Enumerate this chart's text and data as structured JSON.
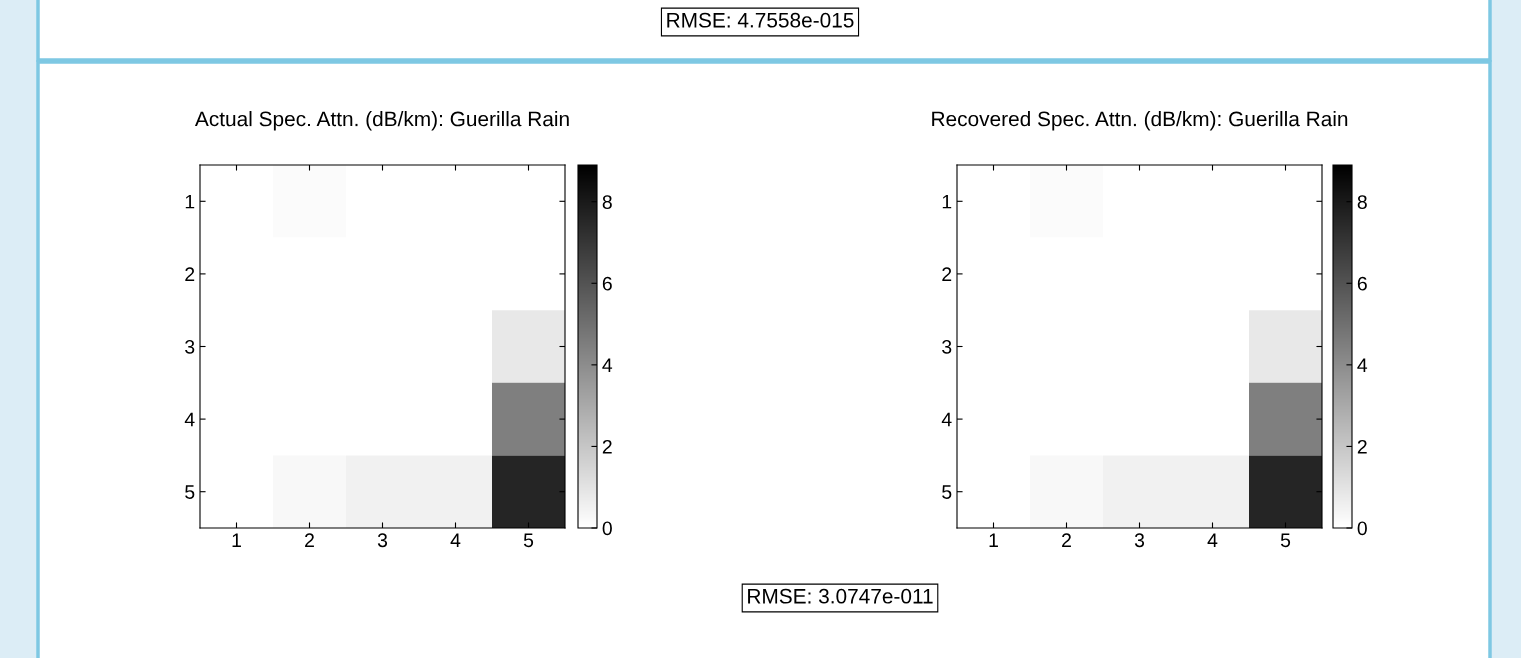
{
  "chart_data": [
    {
      "type": "heatmap",
      "title": "Actual Spec. Attn. (dB/km): Guerilla Rain",
      "categories": [
        "1",
        "2",
        "3",
        "4",
        "5"
      ],
      "y_categories": [
        "1",
        "2",
        "3",
        "4",
        "5"
      ],
      "cells": [
        [
          0,
          0.15,
          0,
          0,
          0
        ],
        [
          0,
          0,
          0,
          0,
          0
        ],
        [
          0,
          0,
          0,
          0,
          0.8
        ],
        [
          0,
          0,
          0,
          0,
          4.45
        ],
        [
          0,
          0.25,
          0.5,
          0.5,
          7.6
        ]
      ],
      "clim": [
        0,
        8.9
      ],
      "cticks": [
        0,
        2,
        4,
        6,
        8
      ],
      "grid": false,
      "annotations": [
        "RMSE: 4.7558e-015"
      ]
    },
    {
      "type": "heatmap",
      "title": "Recovered Spec. Attn. (dB/km): Guerilla Rain",
      "categories": [
        "1",
        "2",
        "3",
        "4",
        "5"
      ],
      "y_categories": [
        "1",
        "2",
        "3",
        "4",
        "5"
      ],
      "cells": [
        [
          0,
          0.15,
          0,
          0,
          0
        ],
        [
          0,
          0,
          0,
          0,
          0
        ],
        [
          0,
          0,
          0,
          0,
          0.8
        ],
        [
          0,
          0,
          0,
          0,
          4.45
        ],
        [
          0,
          0.25,
          0.5,
          0.5,
          7.6
        ]
      ],
      "clim": [
        0,
        8.9
      ],
      "cticks": [
        0,
        2,
        4,
        6,
        8
      ],
      "grid": false,
      "annotations": [
        "RMSE: 3.0747e-011"
      ]
    }
  ]
}
